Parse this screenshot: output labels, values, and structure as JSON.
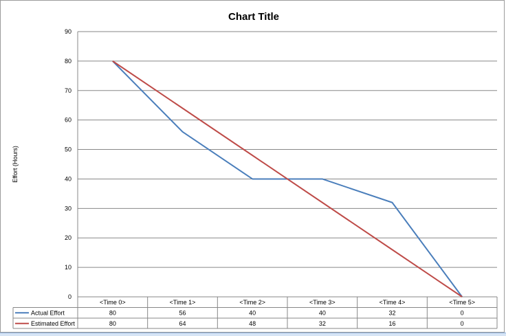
{
  "chart_data": {
    "type": "line",
    "title": "Chart Title",
    "xlabel": "",
    "ylabel": "Effort (Hours)",
    "categories": [
      "<Time 0>",
      "<Time 1>",
      "<Time 2>",
      "<Time 3>",
      "<Time 4>",
      "<Time 5>"
    ],
    "series": [
      {
        "name": "Actual Effort",
        "values": [
          80,
          56,
          40,
          40,
          32,
          0
        ],
        "color": "#4a7ebb"
      },
      {
        "name": "Estimated Effort",
        "values": [
          80,
          64,
          48,
          32,
          16,
          0
        ],
        "color": "#be4b48"
      }
    ],
    "ylim": [
      0,
      90
    ],
    "yticks": [
      0,
      10,
      20,
      30,
      40,
      50,
      60,
      70,
      80,
      90
    ],
    "grid": "horizontal",
    "legend": "data-table"
  }
}
